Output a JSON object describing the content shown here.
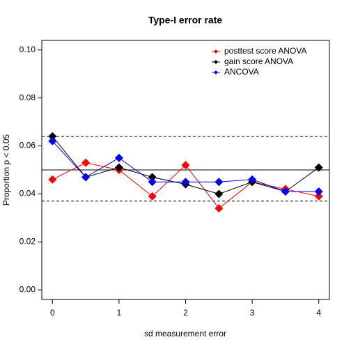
{
  "chart_data": {
    "type": "line",
    "title": "Type-I error rate",
    "x_label": "sd measurement error",
    "y_label": "Proportion p < 0.05",
    "x": [
      0,
      0.5,
      1,
      1.5,
      2,
      2.5,
      3,
      3.5,
      4
    ],
    "series": [
      {
        "name": "posttest score ANOVA",
        "color": "#ff0000",
        "values": [
          0.046,
          0.053,
          0.05,
          0.039,
          0.052,
          0.034,
          0.045,
          0.042,
          0.039
        ]
      },
      {
        "name": "gain score ANOVA",
        "color": "#000000",
        "values": [
          0.064,
          0.047,
          0.051,
          0.047,
          0.044,
          0.04,
          0.045,
          0.041,
          0.051
        ]
      },
      {
        "name": "ANCOVA",
        "color": "#0000ff",
        "values": [
          0.062,
          0.047,
          0.055,
          0.045,
          0.045,
          0.045,
          0.046,
          0.041,
          0.041
        ]
      }
    ],
    "reference_lines": [
      {
        "value": 0.05,
        "style": "solid"
      },
      {
        "value": 0.064,
        "style": "dashed"
      },
      {
        "value": 0.037,
        "style": "dashed"
      }
    ],
    "xlim": [
      -0.16,
      4.16
    ],
    "ylim": [
      -0.004,
      0.104
    ],
    "xticks": [
      0,
      1,
      2,
      3,
      4
    ],
    "yticks": [
      {
        "value": 0,
        "label": "0.00"
      },
      {
        "value": 0.02,
        "label": "0.02"
      },
      {
        "value": 0.04,
        "label": "0.04"
      },
      {
        "value": 0.06,
        "label": "0.06"
      },
      {
        "value": 0.08,
        "label": "0.08"
      },
      {
        "value": 0.1,
        "label": "0.10"
      }
    ],
    "legend": "top-right",
    "grid": false
  }
}
